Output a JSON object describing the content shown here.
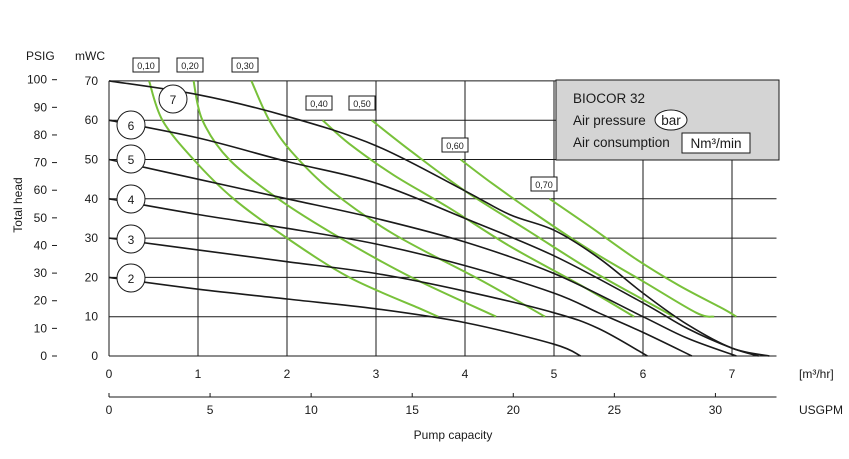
{
  "chart_data": {
    "type": "line",
    "title": "BIOCOR 32",
    "xlabel": "Pump capacity",
    "ylabel": "Total head",
    "x_unit_primary": "[m³/hr]",
    "x_unit_secondary": "USGPM",
    "y_unit_left": "PSIG",
    "y_unit_right": "mWC",
    "xlim": [
      0,
      7.5
    ],
    "ylim": [
      0,
      70
    ],
    "x_ticks": [
      "0",
      "1",
      "2",
      "3",
      "4",
      "5",
      "6",
      "7"
    ],
    "usgpm_ticks": [
      "0",
      "5",
      "10",
      "15",
      "20",
      "25",
      "30"
    ],
    "mwc_ticks": [
      "0",
      "10",
      "20",
      "30",
      "40",
      "50",
      "60",
      "70"
    ],
    "psig_ticks": [
      "0",
      "10",
      "20",
      "30",
      "40",
      "50",
      "60",
      "70",
      "80",
      "90",
      "100"
    ],
    "legend": {
      "title": "BIOCOR 32",
      "air_pressure_label": "Air pressure",
      "air_pressure_unit": "bar",
      "air_consumption_label": "Air consumption",
      "air_consumption_unit": "Nm³/min"
    },
    "pressure_series": [
      {
        "name": "7",
        "points": [
          [
            0,
            70
          ],
          [
            1,
            66.5
          ],
          [
            2,
            61
          ],
          [
            3,
            53.5
          ],
          [
            4,
            42
          ],
          [
            4.5,
            36
          ],
          [
            5,
            32
          ],
          [
            5.5,
            25
          ],
          [
            6,
            16
          ],
          [
            6.5,
            8
          ],
          [
            7,
            2
          ],
          [
            7.42,
            0
          ]
        ]
      },
      {
        "name": "6",
        "points": [
          [
            0,
            60
          ],
          [
            1,
            55.5
          ],
          [
            2,
            49.5
          ],
          [
            3,
            44
          ],
          [
            4,
            35
          ],
          [
            5,
            25.5
          ],
          [
            6,
            13.5
          ],
          [
            6.5,
            7
          ],
          [
            7,
            2
          ],
          [
            7.3,
            0
          ]
        ]
      },
      {
        "name": "5",
        "points": [
          [
            0,
            50
          ],
          [
            1,
            45
          ],
          [
            2,
            40
          ],
          [
            3,
            35
          ],
          [
            4,
            29
          ],
          [
            5,
            21
          ],
          [
            6,
            10
          ],
          [
            6.5,
            4.5
          ],
          [
            7.05,
            0
          ]
        ]
      },
      {
        "name": "4",
        "points": [
          [
            0,
            40
          ],
          [
            1,
            36
          ],
          [
            2,
            32.5
          ],
          [
            3,
            28.5
          ],
          [
            4,
            23
          ],
          [
            5,
            16
          ],
          [
            5.5,
            11
          ],
          [
            6,
            6
          ],
          [
            6.55,
            0
          ]
        ]
      },
      {
        "name": "3",
        "points": [
          [
            0,
            30
          ],
          [
            1,
            27
          ],
          [
            2,
            24
          ],
          [
            3,
            21
          ],
          [
            4,
            16.5
          ],
          [
            5,
            11
          ],
          [
            5.5,
            7
          ],
          [
            6.05,
            0
          ]
        ]
      },
      {
        "name": "2",
        "points": [
          [
            0,
            20
          ],
          [
            1,
            17
          ],
          [
            2,
            14.5
          ],
          [
            3,
            12
          ],
          [
            4,
            8.5
          ],
          [
            5,
            3
          ],
          [
            5.3,
            0
          ]
        ]
      }
    ],
    "air_series": [
      {
        "name": "0,10",
        "points": [
          [
            0.45,
            70
          ],
          [
            0.6,
            60
          ],
          [
            0.95,
            50
          ],
          [
            1.4,
            40
          ],
          [
            2.0,
            30
          ],
          [
            2.7,
            20
          ],
          [
            3.5,
            12
          ],
          [
            3.7,
            10
          ]
        ]
      },
      {
        "name": "0,20",
        "points": [
          [
            0.95,
            70
          ],
          [
            1.05,
            60
          ],
          [
            1.35,
            50
          ],
          [
            1.9,
            40
          ],
          [
            2.6,
            30
          ],
          [
            3.4,
            20
          ],
          [
            4.35,
            10
          ]
        ]
      },
      {
        "name": "0,30",
        "points": [
          [
            1.6,
            70
          ],
          [
            1.8,
            60
          ],
          [
            2.05,
            52
          ],
          [
            2.5,
            42
          ],
          [
            3.2,
            31
          ],
          [
            4.2,
            19
          ],
          [
            4.9,
            10
          ]
        ]
      },
      {
        "name": "0,40",
        "points": [
          [
            2.4,
            60
          ],
          [
            2.7,
            54
          ],
          [
            3.2,
            46
          ],
          [
            3.8,
            38
          ],
          [
            4.5,
            28
          ],
          [
            5.3,
            18
          ],
          [
            5.9,
            10
          ]
        ]
      },
      {
        "name": "0,50",
        "points": [
          [
            2.95,
            60
          ],
          [
            3.4,
            52
          ],
          [
            4.0,
            42
          ],
          [
            4.7,
            32
          ],
          [
            5.4,
            22
          ],
          [
            5.95,
            15
          ],
          [
            6.35,
            10
          ]
        ]
      },
      {
        "name": "0,60",
        "points": [
          [
            3.95,
            50
          ],
          [
            4.3,
            44
          ],
          [
            4.8,
            36
          ],
          [
            5.4,
            27
          ],
          [
            6.0,
            19
          ],
          [
            6.6,
            11
          ],
          [
            6.8,
            10
          ]
        ]
      },
      {
        "name": "0,70",
        "points": [
          [
            4.95,
            40
          ],
          [
            5.4,
            33
          ],
          [
            5.9,
            25
          ],
          [
            6.4,
            18
          ],
          [
            6.9,
            12
          ],
          [
            7.05,
            10
          ]
        ]
      }
    ]
  }
}
